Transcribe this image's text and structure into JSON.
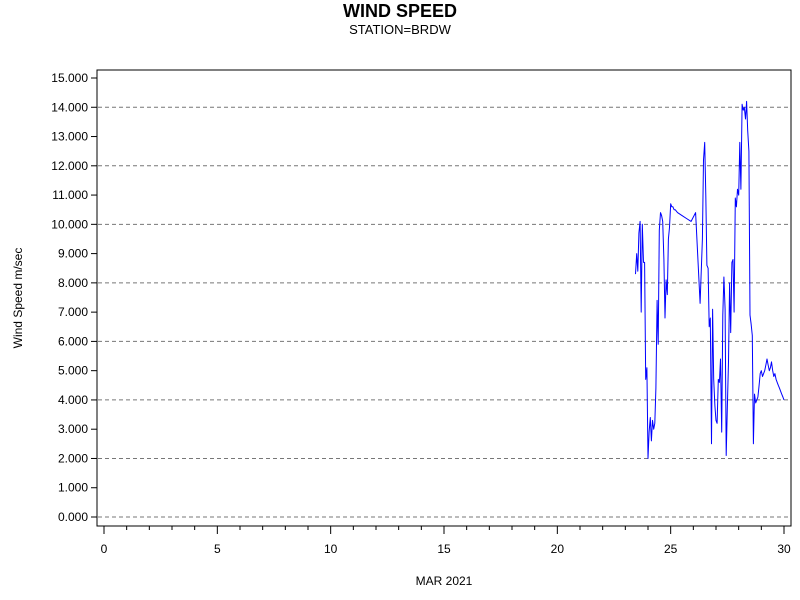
{
  "chart_data": {
    "type": "line",
    "title": "WIND SPEED",
    "subtitle": "STATION=BRDW",
    "xlabel": "MAR 2021",
    "ylabel": "Wind Speed m/sec",
    "xlim": [
      0,
      30
    ],
    "ylim": [
      0,
      15
    ],
    "x_ticks": [
      0,
      5,
      10,
      15,
      20,
      25,
      30
    ],
    "x_tick_labels": [
      "0",
      "5",
      "10",
      "15",
      "20",
      "25",
      "30"
    ],
    "y_ticks": [
      0,
      1,
      2,
      3,
      4,
      5,
      6,
      7,
      8,
      9,
      10,
      11,
      12,
      13,
      14,
      15
    ],
    "y_tick_labels": [
      "0.000",
      "1.000",
      "2.000",
      "3.000",
      "4.000",
      "5.000",
      "6.000",
      "7.000",
      "8.000",
      "9.000",
      "10.000",
      "11.000",
      "12.000",
      "13.000",
      "14.000",
      "15.000"
    ],
    "grid": "horizontal dashed at even values",
    "line_color": "#0000ff",
    "series": [
      {
        "x": [
          23.45,
          23.5,
          23.55,
          23.6,
          23.65,
          23.7,
          23.75,
          23.8,
          23.85,
          23.9,
          23.95,
          24.0,
          24.05,
          24.1,
          24.15,
          24.2,
          24.25,
          24.3,
          24.35,
          24.4,
          24.45,
          24.5,
          24.55,
          24.6,
          24.65,
          24.7,
          24.75,
          24.8,
          24.85,
          24.9,
          24.95,
          25.0,
          25.05,
          25.1,
          25.15,
          25.2,
          25.3,
          25.5,
          25.7,
          25.9,
          26.1,
          26.3,
          26.4,
          26.45,
          26.5,
          26.55,
          26.6,
          26.65,
          26.7,
          26.75,
          26.8,
          26.85,
          26.9,
          26.95,
          27.0,
          27.05,
          27.1,
          27.15,
          27.2,
          27.25,
          27.3,
          27.35,
          27.4,
          27.45,
          27.5,
          27.55,
          27.6,
          27.65,
          27.7,
          27.75,
          27.8,
          27.85,
          27.9,
          27.95,
          28.0,
          28.05,
          28.1,
          28.15,
          28.2,
          28.25,
          28.3,
          28.35,
          28.4,
          28.45,
          28.5,
          28.55,
          28.6,
          28.65,
          28.7,
          28.75,
          28.8,
          28.85,
          28.9,
          28.95,
          29.0,
          29.05,
          29.1,
          29.15,
          29.2,
          29.25,
          29.3,
          29.35,
          29.4,
          29.45,
          29.5,
          29.55,
          29.6,
          29.65,
          29.7,
          29.75,
          29.8,
          29.85,
          29.9,
          29.95,
          30.0
        ],
        "y": [
          8.3,
          9.0,
          8.4,
          9.7,
          10.1,
          7.0,
          10.0,
          8.7,
          8.7,
          4.7,
          5.1,
          2.0,
          2.9,
          3.4,
          2.6,
          3.3,
          3.0,
          3.2,
          4.4,
          7.4,
          5.9,
          9.8,
          10.4,
          10.3,
          10.1,
          8.8,
          6.8,
          8.1,
          7.6,
          9.5,
          9.9,
          10.7,
          10.6,
          10.6,
          10.5,
          10.5,
          10.4,
          10.3,
          10.2,
          10.1,
          10.4,
          7.3,
          9.5,
          12.2,
          12.8,
          11.0,
          8.6,
          8.5,
          6.5,
          6.8,
          2.5,
          7.1,
          4.7,
          3.8,
          3.3,
          3.2,
          4.7,
          4.6,
          5.4,
          2.9,
          6.9,
          8.2,
          7.1,
          2.1,
          3.7,
          5.3,
          8.0,
          6.3,
          8.7,
          8.8,
          7.0,
          10.9,
          10.6,
          11.2,
          11.0,
          12.8,
          11.2,
          14.1,
          13.9,
          14.0,
          13.6,
          14.2,
          13.2,
          12.5,
          6.9,
          6.6,
          6.2,
          2.5,
          4.2,
          3.9,
          4.0,
          4.1,
          4.5,
          4.9,
          5.0,
          4.8,
          4.9,
          5.0,
          5.2,
          5.4,
          5.2,
          5.0,
          5.1,
          5.3,
          5.0,
          4.8,
          4.9,
          4.7,
          4.6,
          4.5,
          4.4,
          4.3,
          4.2,
          4.1,
          4.0
        ]
      }
    ]
  }
}
